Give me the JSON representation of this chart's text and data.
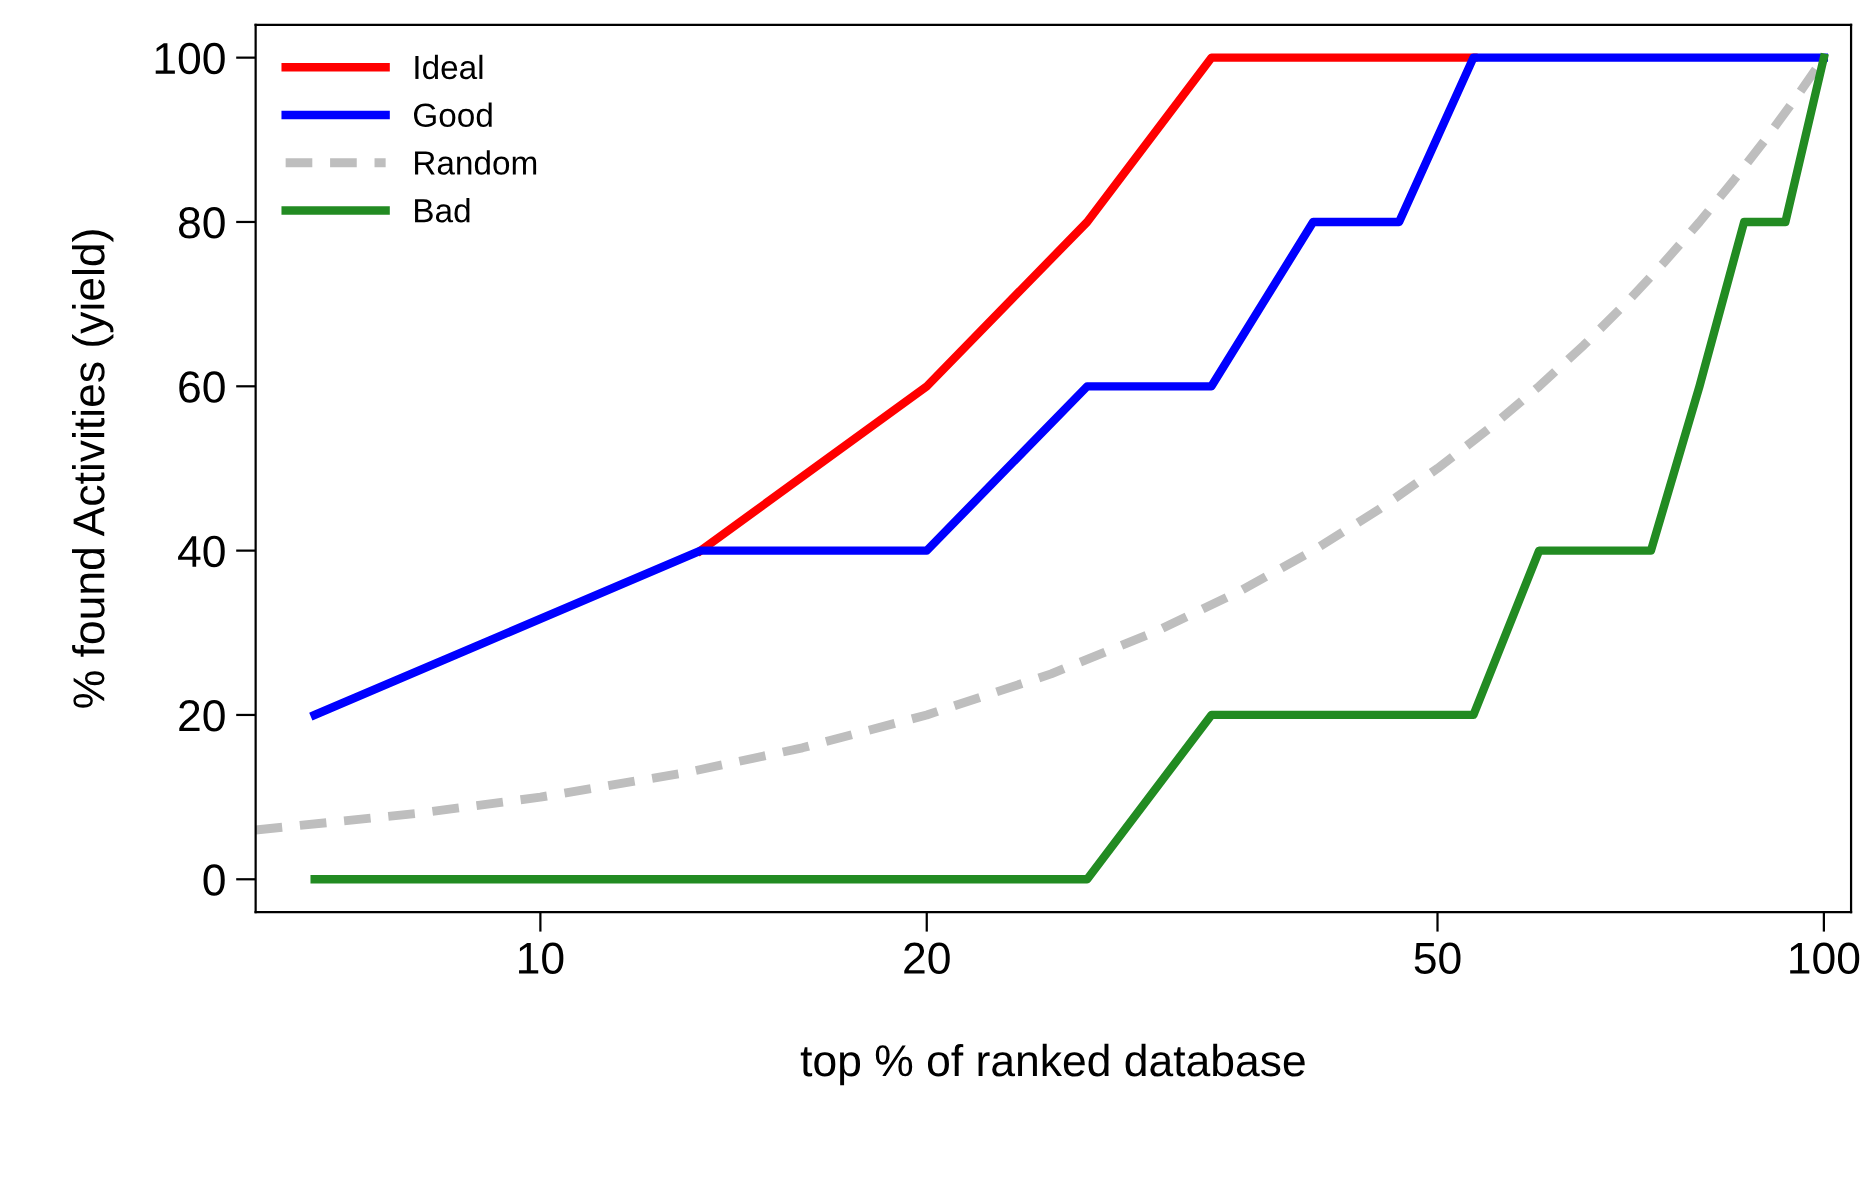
{
  "chart_data": {
    "type": "line",
    "xlabel": "top % of ranked database",
    "ylabel": "% found Activities (yield)",
    "log": "x",
    "x": [
      6.67,
      13.33,
      20,
      26.67,
      33.33,
      40,
      46.67,
      53.33,
      60,
      66.67,
      73.33,
      80,
      86.67,
      93.33,
      100
    ],
    "series": [
      {
        "name": "Ideal",
        "color": "#ff0000",
        "values": [
          null,
          40,
          60,
          80,
          100,
          100,
          100,
          100,
          null,
          null,
          null,
          null,
          null,
          null,
          null
        ]
      },
      {
        "name": "Good",
        "color": "#0000ff",
        "values": [
          20,
          40,
          40,
          60,
          60,
          80,
          80,
          100,
          100,
          100,
          100,
          100,
          100,
          100,
          100
        ]
      },
      {
        "name": "Random",
        "color": "#bebebe",
        "line_style": "dashed",
        "x": [
          6,
          8,
          10,
          13,
          16,
          20,
          25,
          30,
          35,
          40,
          45,
          50,
          55,
          60,
          65,
          70,
          75,
          80,
          85,
          90,
          95,
          100
        ],
        "values": [
          6,
          8,
          10,
          13,
          16,
          20,
          25,
          30,
          35,
          40,
          45,
          50,
          55,
          60,
          65,
          70,
          75,
          80,
          85,
          90,
          95,
          100
        ]
      },
      {
        "name": "Bad",
        "color": "#228b22",
        "values": [
          0,
          0,
          0,
          0,
          20,
          20,
          20,
          20,
          40,
          40,
          40,
          60,
          80,
          80,
          100
        ]
      }
    ],
    "xlim": [
      6,
      105
    ],
    "xticks": [
      10,
      20,
      50,
      100
    ],
    "ylim": [
      -4,
      104
    ],
    "yticks": [
      0,
      20,
      40,
      60,
      80,
      100
    ],
    "grid": false,
    "legend": "top left",
    "line_style": "solid",
    "marker": "none"
  }
}
